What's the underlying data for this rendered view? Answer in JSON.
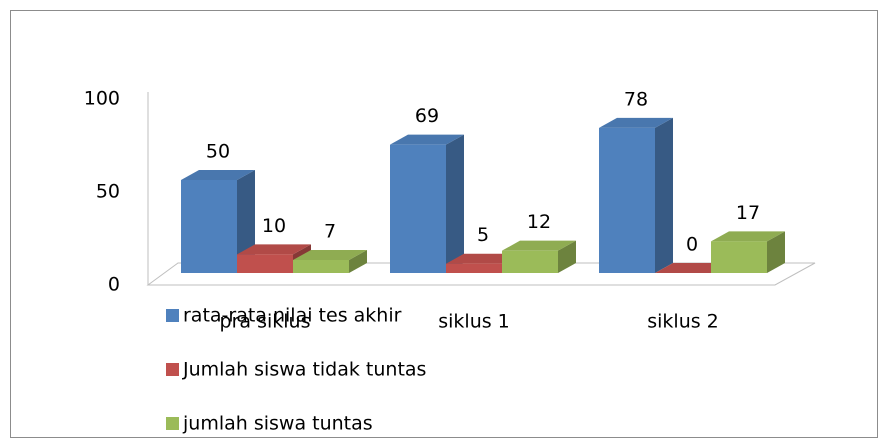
{
  "chart_data": {
    "type": "bar3d",
    "categories": [
      "pra siklus",
      "siklus 1",
      "siklus 2"
    ],
    "series": [
      {
        "name": "rata-rata nilai tes akhir",
        "color": "#4f81bd",
        "values": [
          50,
          69,
          78
        ]
      },
      {
        "name": "Jumlah siswa tidak tuntas",
        "color": "#c0504d",
        "values": [
          10,
          5,
          0
        ]
      },
      {
        "name": "jumlah siswa tuntas",
        "color": "#9bbb59",
        "values": [
          7,
          12,
          17
        ]
      }
    ],
    "ylim": [
      0,
      100
    ],
    "yticks": [
      0,
      50,
      100
    ],
    "data_labels": true
  }
}
